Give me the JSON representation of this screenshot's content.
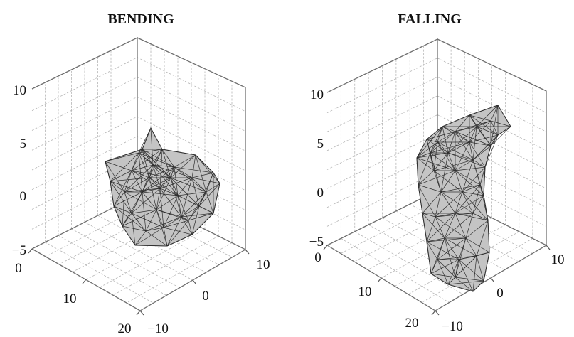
{
  "chart_data": [
    {
      "type": "3d-mesh",
      "title": "BENDING",
      "grid": true,
      "axes": {
        "x": {
          "range": [
            0,
            20
          ],
          "ticks": [
            "0",
            "10",
            "20"
          ]
        },
        "y": {
          "range": [
            -10,
            10
          ],
          "ticks": [
            "10",
            "0",
            "−10"
          ]
        },
        "z": {
          "range": [
            -5,
            10
          ],
          "ticks": [
            "10",
            "5",
            "0",
            "−5"
          ]
        }
      },
      "mesh": {
        "shape": "compact blob",
        "extent_z": [
          -5,
          7
        ]
      }
    },
    {
      "type": "3d-mesh",
      "title": "FALLING",
      "grid": true,
      "axes": {
        "x": {
          "range": [
            0,
            20
          ],
          "ticks": [
            "0",
            "10",
            "20"
          ]
        },
        "y": {
          "range": [
            -10,
            10
          ],
          "ticks": [
            "10",
            "0",
            "−10"
          ]
        },
        "z": {
          "range": [
            -5,
            10
          ],
          "ticks": [
            "10",
            "5",
            "0",
            "−5"
          ]
        }
      },
      "mesh": {
        "shape": "elongated curved tube",
        "extent_z": [
          -5,
          9
        ]
      }
    }
  ]
}
